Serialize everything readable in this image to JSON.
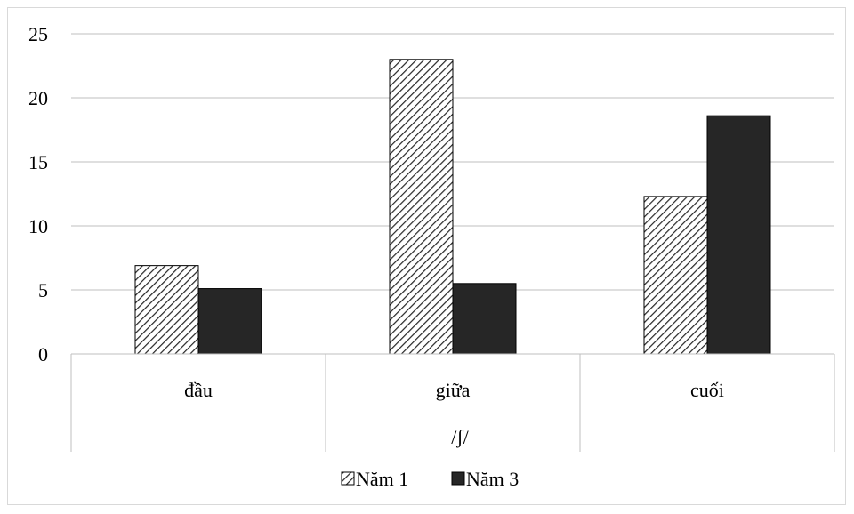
{
  "chart_data": {
    "type": "bar",
    "categories": [
      "đầu",
      "giữa",
      "cuối"
    ],
    "group_label": "/ʃ/",
    "series": [
      {
        "name": "Năm 1",
        "values": [
          6.9,
          23.0,
          12.3
        ],
        "fill": "hatched",
        "color": "#262626"
      },
      {
        "name": "Năm 3",
        "values": [
          5.1,
          5.5,
          18.6
        ],
        "fill": "solid",
        "color": "#262626"
      }
    ],
    "ylim": [
      0,
      25
    ],
    "yticks": [
      0,
      5,
      10,
      15,
      20,
      25
    ],
    "grid": true,
    "legend_position": "bottom"
  },
  "colors": {
    "gridline": "#bfbfbf",
    "frame": "#d9d9d9",
    "bar_outline": "#000000",
    "hatch_background": "#ffffff"
  }
}
